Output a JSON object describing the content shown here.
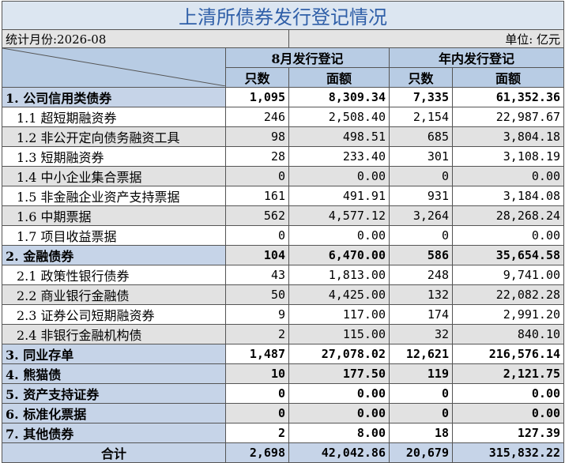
{
  "header": {
    "title": "上清所债券发行登记情况",
    "period": "统计月份:2026-08",
    "unit": "单位: 亿元"
  },
  "table": {
    "columns": {
      "groups": [
        "8月发行登记",
        "年内发行登记"
      ],
      "sub": [
        "只数",
        "面额",
        "只数",
        "面额"
      ]
    },
    "groups": [
      {
        "label": "1. 公司信用类债券",
        "values": [
          "1,095",
          "8,309.34",
          "7,335",
          "61,352.36"
        ],
        "items": [
          {
            "label": "1.1 超短期融资券",
            "values": [
              "246",
              "2,508.40",
              "2,154",
              "22,987.67"
            ]
          },
          {
            "label": "1.2 非公开定向债务融资工具",
            "values": [
              "98",
              "498.51",
              "685",
              "3,804.18"
            ]
          },
          {
            "label": "1.3 短期融资券",
            "values": [
              "28",
              "233.40",
              "301",
              "3,108.19"
            ]
          },
          {
            "label": "1.4 中小企业集合票据",
            "values": [
              "0",
              "0.00",
              "0",
              "0.00"
            ]
          },
          {
            "label": "1.5 非金融企业资产支持票据",
            "values": [
              "161",
              "491.91",
              "931",
              "3,184.08"
            ]
          },
          {
            "label": "1.6 中期票据",
            "values": [
              "562",
              "4,577.12",
              "3,264",
              "28,268.24"
            ]
          },
          {
            "label": "1.7 项目收益票据",
            "values": [
              "0",
              "0.00",
              "0",
              "0.00"
            ]
          }
        ]
      },
      {
        "label": "2. 金融债券",
        "values": [
          "104",
          "6,470.00",
          "586",
          "35,654.58"
        ],
        "items": [
          {
            "label": "2.1 政策性银行债券",
            "values": [
              "43",
              "1,813.00",
              "248",
              "9,741.00"
            ]
          },
          {
            "label": "2.2 商业银行金融债",
            "values": [
              "50",
              "4,425.00",
              "132",
              "22,082.28"
            ]
          },
          {
            "label": "2.3 证券公司短期融资券",
            "values": [
              "9",
              "117.00",
              "174",
              "2,991.20"
            ]
          },
          {
            "label": "2.4 非银行金融机构债",
            "values": [
              "2",
              "115.00",
              "32",
              "840.10"
            ]
          }
        ]
      },
      {
        "label": "3. 同业存单",
        "values": [
          "1,487",
          "27,078.02",
          "12,621",
          "216,576.14"
        ],
        "items": []
      },
      {
        "label": "4. 熊猫债",
        "values": [
          "10",
          "177.50",
          "119",
          "2,121.75"
        ],
        "items": []
      },
      {
        "label": "5. 资产支持证券",
        "values": [
          "0",
          "0.00",
          "0",
          "0.00"
        ],
        "items": []
      },
      {
        "label": "6. 标准化票据",
        "values": [
          "0",
          "0.00",
          "0",
          "0.00"
        ],
        "items": []
      },
      {
        "label": "7. 其他债券",
        "values": [
          "2",
          "8.00",
          "18",
          "127.39"
        ],
        "items": []
      }
    ],
    "total": {
      "label": "合计",
      "values": [
        "2,698",
        "42,042.86",
        "20,679",
        "315,832.22"
      ]
    }
  }
}
